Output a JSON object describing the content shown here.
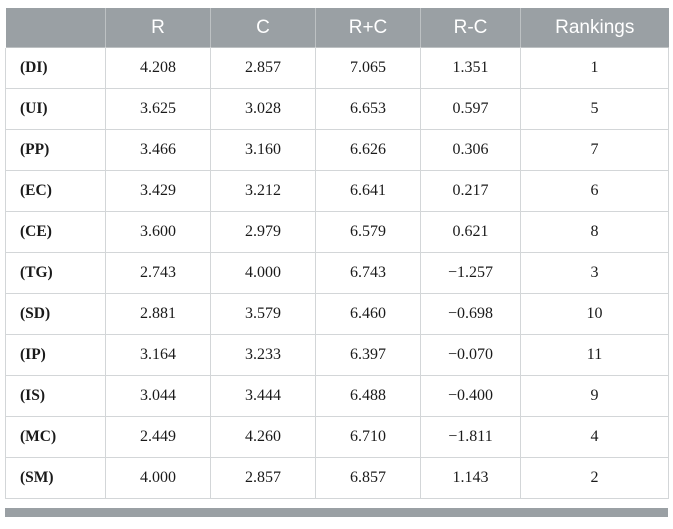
{
  "table": {
    "columns": [
      "",
      "R",
      "C",
      "R+C",
      "R-C",
      "Rankings"
    ],
    "rows": [
      {
        "label": "(DI)",
        "values": [
          "4.208",
          "2.857",
          "7.065",
          "1.351",
          "1"
        ]
      },
      {
        "label": "(UI)",
        "values": [
          "3.625",
          "3.028",
          "6.653",
          "0.597",
          "5"
        ]
      },
      {
        "label": "(PP)",
        "values": [
          "3.466",
          "3.160",
          "6.626",
          "0.306",
          "7"
        ]
      },
      {
        "label": "(EC)",
        "values": [
          "3.429",
          "3.212",
          "6.641",
          "0.217",
          "6"
        ]
      },
      {
        "label": "(CE)",
        "values": [
          "3.600",
          "2.979",
          "6.579",
          "0.621",
          "8"
        ]
      },
      {
        "label": "(TG)",
        "values": [
          "2.743",
          "4.000",
          "6.743",
          "−1.257",
          "3"
        ]
      },
      {
        "label": "(SD)",
        "values": [
          "2.881",
          "3.579",
          "6.460",
          "−0.698",
          "10"
        ]
      },
      {
        "label": "(IP)",
        "values": [
          "3.164",
          "3.233",
          "6.397",
          "−0.070",
          "11"
        ]
      },
      {
        "label": "(IS)",
        "values": [
          "3.044",
          "3.444",
          "6.488",
          "−0.400",
          "9"
        ]
      },
      {
        "label": "(MC)",
        "values": [
          "2.449",
          "4.260",
          "6.710",
          "−1.811",
          "4"
        ]
      },
      {
        "label": "(SM)",
        "values": [
          "4.000",
          "2.857",
          "6.857",
          "1.143",
          "2"
        ]
      }
    ]
  },
  "colors": {
    "header_bg": "#9aa0a4",
    "border": "#d3d6d8",
    "text": "#1a1a1a",
    "header_text": "#ffffff"
  }
}
